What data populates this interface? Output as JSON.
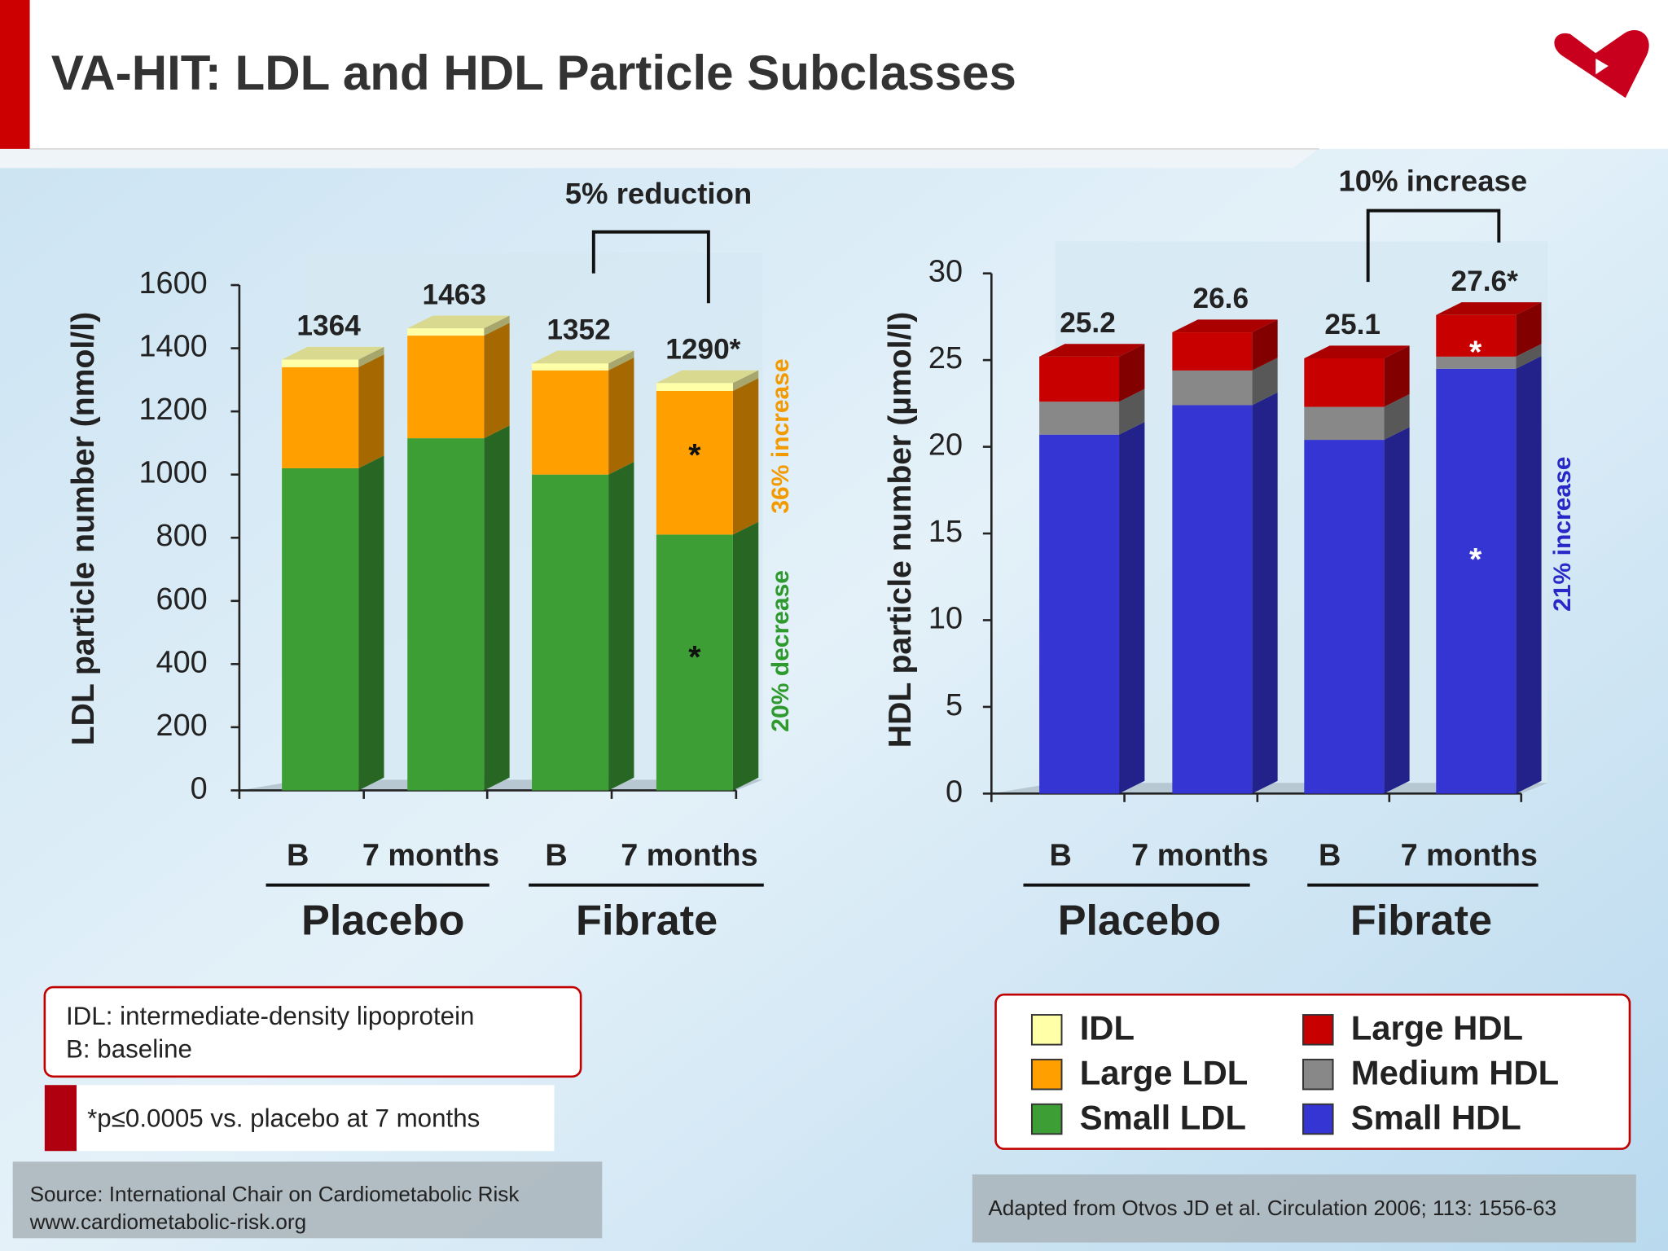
{
  "slide": {
    "title": "VA-HIT: LDL and HDL Particle Subclasses",
    "notes": [
      "IDL: intermediate-density lipoprotein",
      "B: baseline"
    ],
    "footnote": "*p≤0.0005 vs. placebo at 7 months",
    "source": [
      "Source: International Chair on Cardiometabolic Risk",
      "www.cardiometabolic-risk.org"
    ],
    "credit": "Adapted from Otvos JD et al. Circulation 2006; 113: 1556-63"
  },
  "chart_data": [
    {
      "type": "stacked_bar",
      "ylabel": "LDL particle number (nmol/l)",
      "categories": [
        "B",
        "7 months",
        "B",
        "7 months"
      ],
      "groups": [
        "Placebo",
        "Fibrate"
      ],
      "series": [
        {
          "name": "Small LDL",
          "color": "#3d9e36",
          "values": [
            1020,
            1115,
            1000,
            810
          ]
        },
        {
          "name": "Large LDL",
          "color": "#ffa000",
          "values": [
            320,
            325,
            330,
            455
          ]
        },
        {
          "name": "IDL",
          "color": "#ffffa8",
          "values": [
            24,
            23,
            22,
            25
          ]
        }
      ],
      "ylim": [
        0,
        1600
      ],
      "yticks": [
        0,
        200,
        400,
        600,
        800,
        1000,
        1200,
        1400,
        1600
      ],
      "bar_labels": [
        "1364",
        "1463",
        "1352",
        "1290*"
      ],
      "bracket_label": "5% reduction",
      "side_labels": [
        {
          "text": "36% increase",
          "color": "#f39a00"
        },
        {
          "text": "20% decrease",
          "color": "#2e9a2e"
        }
      ],
      "marks": [
        "*",
        "*"
      ]
    },
    {
      "type": "stacked_bar",
      "ylabel": "HDL particle number (µmol/l)",
      "categories": [
        "B",
        "7 months",
        "B",
        "7 months"
      ],
      "groups": [
        "Placebo",
        "Fibrate"
      ],
      "series": [
        {
          "name": "Small HDL",
          "color": "#3535d4",
          "values": [
            20.7,
            22.4,
            20.4,
            24.5
          ]
        },
        {
          "name": "Medium HDL",
          "color": "#888888",
          "values": [
            1.9,
            2.0,
            1.9,
            0.7
          ]
        },
        {
          "name": "Large HDL",
          "color": "#c80000",
          "values": [
            2.6,
            2.2,
            2.8,
            2.4
          ]
        }
      ],
      "ylim": [
        0,
        30
      ],
      "yticks": [
        0,
        5,
        10,
        15,
        20,
        25,
        30
      ],
      "bar_labels": [
        "25.2",
        "26.6",
        "25.1",
        "27.6*"
      ],
      "bracket_label": "10% increase",
      "side_labels": [
        {
          "text": "21% increase",
          "color": "#2828c8"
        }
      ],
      "marks": [
        "*",
        "*"
      ]
    }
  ]
}
